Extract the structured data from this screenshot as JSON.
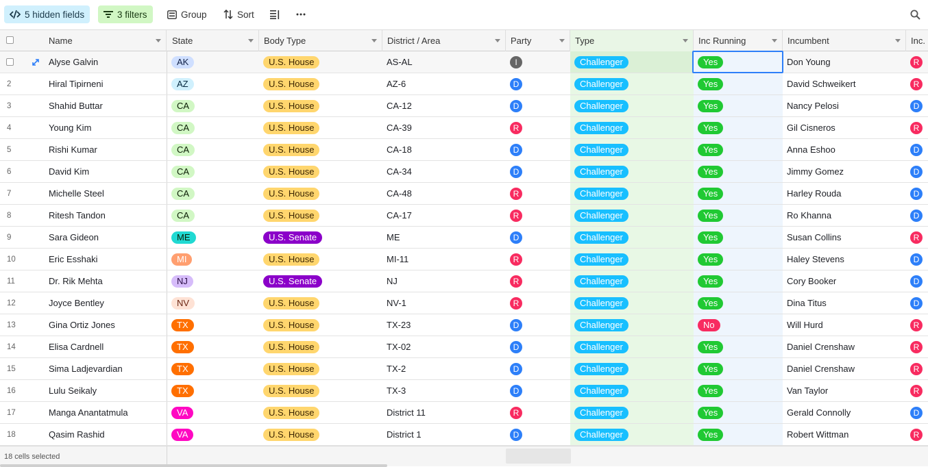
{
  "toolbar": {
    "hidden_fields": "5 hidden fields",
    "filters": "3 filters",
    "group": "Group",
    "sort": "Sort"
  },
  "columns": [
    "Name",
    "State",
    "Body Type",
    "District / Area",
    "Party",
    "Type",
    "Inc Running",
    "Incumbent",
    "Inc."
  ],
  "colors": {
    "state": {
      "AK": {
        "bg": "#cfdfff",
        "fg": "#102046"
      },
      "AZ": {
        "bg": "#d0f0fd",
        "fg": "#04283f"
      },
      "CA": {
        "bg": "#d1f7c4",
        "fg": "#0b1d05"
      },
      "ME": {
        "bg": "#20d9d2",
        "fg": "#0b1d05"
      },
      "MI": {
        "bg": "#ff9f70",
        "fg": "#ffffff"
      },
      "NJ": {
        "bg": "#d6bcfa",
        "fg": "#280b42"
      },
      "NV": {
        "bg": "#fee2d5",
        "fg": "#6b2613"
      },
      "TX": {
        "bg": "#ff6f00",
        "fg": "#ffffff"
      },
      "VA": {
        "bg": "#ff08c2",
        "fg": "#ffffff"
      }
    },
    "body": {
      "U.S. House": {
        "bg": "#ffd66e",
        "fg": "#3b2501"
      },
      "U.S. Senate": {
        "bg": "#8b00c9",
        "fg": "#ffffff"
      }
    },
    "party": {
      "I": "#666666",
      "D": "#2d7ff9",
      "R": "#f82b60"
    },
    "type": {
      "bg": "#18bfff",
      "fg": "#ffffff"
    },
    "inc_running": {
      "Yes": {
        "bg": "#20c933",
        "fg": "#ffffff"
      },
      "No": {
        "bg": "#f82b60",
        "fg": "#ffffff"
      }
    }
  },
  "rows": [
    {
      "num": "",
      "name": "Alyse Galvin",
      "state": "AK",
      "body": "U.S. House",
      "district": "AS-AL",
      "party": "I",
      "type": "Challenger",
      "inc_running": "Yes",
      "incumbent": "Don Young",
      "inc_party": "R"
    },
    {
      "num": "2",
      "name": "Hiral Tipirneni",
      "state": "AZ",
      "body": "U.S. House",
      "district": "AZ-6",
      "party": "D",
      "type": "Challenger",
      "inc_running": "Yes",
      "incumbent": "David Schweikert",
      "inc_party": "R"
    },
    {
      "num": "3",
      "name": "Shahid Buttar",
      "state": "CA",
      "body": "U.S. House",
      "district": "CA-12",
      "party": "D",
      "type": "Challenger",
      "inc_running": "Yes",
      "incumbent": "Nancy Pelosi",
      "inc_party": "D"
    },
    {
      "num": "4",
      "name": "Young Kim",
      "state": "CA",
      "body": "U.S. House",
      "district": "CA-39",
      "party": "R",
      "type": "Challenger",
      "inc_running": "Yes",
      "incumbent": "Gil Cisneros",
      "inc_party": "R"
    },
    {
      "num": "5",
      "name": "Rishi Kumar",
      "state": "CA",
      "body": "U.S. House",
      "district": "CA-18",
      "party": "D",
      "type": "Challenger",
      "inc_running": "Yes",
      "incumbent": "Anna Eshoo",
      "inc_party": "D"
    },
    {
      "num": "6",
      "name": "David Kim",
      "state": "CA",
      "body": "U.S. House",
      "district": "CA-34",
      "party": "D",
      "type": "Challenger",
      "inc_running": "Yes",
      "incumbent": "Jimmy Gomez",
      "inc_party": "D"
    },
    {
      "num": "7",
      "name": "Michelle Steel",
      "state": "CA",
      "body": "U.S. House",
      "district": "CA-48",
      "party": "R",
      "type": "Challenger",
      "inc_running": "Yes",
      "incumbent": "Harley Rouda",
      "inc_party": "D"
    },
    {
      "num": "8",
      "name": "Ritesh Tandon",
      "state": "CA",
      "body": "U.S. House",
      "district": "CA-17",
      "party": "R",
      "type": "Challenger",
      "inc_running": "Yes",
      "incumbent": "Ro Khanna",
      "inc_party": "D"
    },
    {
      "num": "9",
      "name": "Sara Gideon",
      "state": "ME",
      "body": "U.S. Senate",
      "district": "ME",
      "party": "D",
      "type": "Challenger",
      "inc_running": "Yes",
      "incumbent": "Susan Collins",
      "inc_party": "R"
    },
    {
      "num": "10",
      "name": "Eric Esshaki",
      "state": "MI",
      "body": "U.S. House",
      "district": "MI-11",
      "party": "R",
      "type": "Challenger",
      "inc_running": "Yes",
      "incumbent": "Haley Stevens",
      "inc_party": "D"
    },
    {
      "num": "11",
      "name": "Dr. Rik Mehta",
      "state": "NJ",
      "body": "U.S. Senate",
      "district": "NJ",
      "party": "R",
      "type": "Challenger",
      "inc_running": "Yes",
      "incumbent": "Cory Booker",
      "inc_party": "D"
    },
    {
      "num": "12",
      "name": "Joyce Bentley",
      "state": "NV",
      "body": "U.S. House",
      "district": "NV-1",
      "party": "R",
      "type": "Challenger",
      "inc_running": "Yes",
      "incumbent": "Dina Titus",
      "inc_party": "D"
    },
    {
      "num": "13",
      "name": "Gina Ortiz Jones",
      "state": "TX",
      "body": "U.S. House",
      "district": "TX-23",
      "party": "D",
      "type": "Challenger",
      "inc_running": "No",
      "incumbent": "Will Hurd",
      "inc_party": "R"
    },
    {
      "num": "14",
      "name": "Elisa Cardnell",
      "state": "TX",
      "body": "U.S. House",
      "district": "TX-02",
      "party": "D",
      "type": "Challenger",
      "inc_running": "Yes",
      "incumbent": "Daniel Crenshaw",
      "inc_party": "R"
    },
    {
      "num": "15",
      "name": "Sima Ladjevardian",
      "state": "TX",
      "body": "U.S. House",
      "district": "TX-2",
      "party": "D",
      "type": "Challenger",
      "inc_running": "Yes",
      "incumbent": "Daniel Crenshaw",
      "inc_party": "R"
    },
    {
      "num": "16",
      "name": "Lulu Seikaly",
      "state": "TX",
      "body": "U.S. House",
      "district": "TX-3",
      "party": "D",
      "type": "Challenger",
      "inc_running": "Yes",
      "incumbent": "Van Taylor",
      "inc_party": "R"
    },
    {
      "num": "17",
      "name": "Manga Anantatmula",
      "state": "VA",
      "body": "U.S. House",
      "district": "District 11",
      "party": "R",
      "type": "Challenger",
      "inc_running": "Yes",
      "incumbent": "Gerald Connolly",
      "inc_party": "D"
    },
    {
      "num": "18",
      "name": "Qasim Rashid",
      "state": "VA",
      "body": "U.S. House",
      "district": "District 1",
      "party": "D",
      "type": "Challenger",
      "inc_running": "Yes",
      "incumbent": "Robert Wittman",
      "inc_party": "R"
    }
  ],
  "footer": {
    "summary": "18 cells selected"
  }
}
